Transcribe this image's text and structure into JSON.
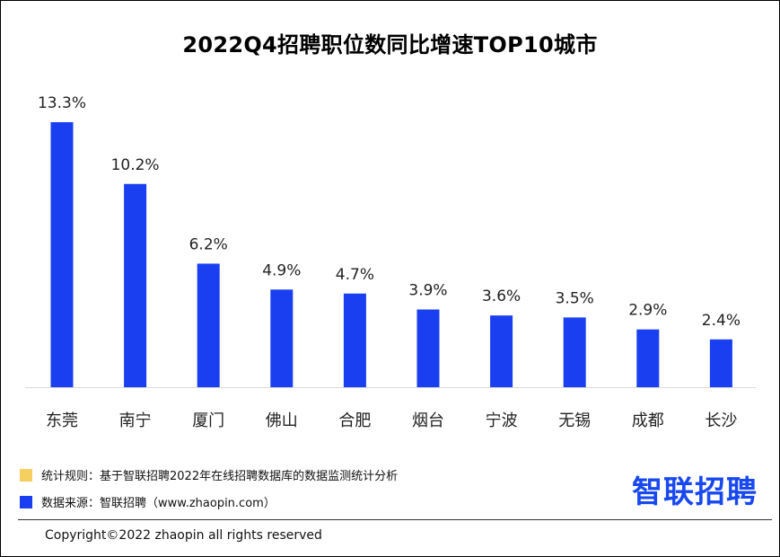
{
  "title": "2022Q4招聘职位数同比增速TOP10城市",
  "chart_data": {
    "type": "bar",
    "title": "2022Q4招聘职位数同比增速TOP10城市",
    "categories": [
      "东莞",
      "南宁",
      "厦门",
      "佛山",
      "合肥",
      "烟台",
      "宁波",
      "无锡",
      "成都",
      "长沙"
    ],
    "values": [
      13.3,
      10.2,
      6.2,
      4.9,
      4.7,
      3.9,
      3.6,
      3.5,
      2.9,
      2.4
    ],
    "value_labels": [
      "13.3%",
      "10.2%",
      "6.2%",
      "4.9%",
      "4.7%",
      "3.9%",
      "3.6%",
      "3.5%",
      "2.9%",
      "2.4%"
    ],
    "unit": "%",
    "ylim": [
      0,
      15
    ],
    "xlabel": "",
    "ylabel": "",
    "grid": false,
    "bar_color": "#1a3ff0",
    "axis_color": "#d9d9d9"
  },
  "legend": [
    {
      "text": "统计规则：基于智联招聘2022年在线招聘数据库的数据监测统计分析",
      "color": "#f5d061"
    },
    {
      "text": "数据来源：智联招聘（www.zhaopin.com）",
      "color": "#1a3ff0"
    }
  ],
  "brand": {
    "text": "智联招聘",
    "color": "#1848f0"
  },
  "footer": {
    "copyright": "Copyright©2022 zhaopin all rights reserved"
  }
}
